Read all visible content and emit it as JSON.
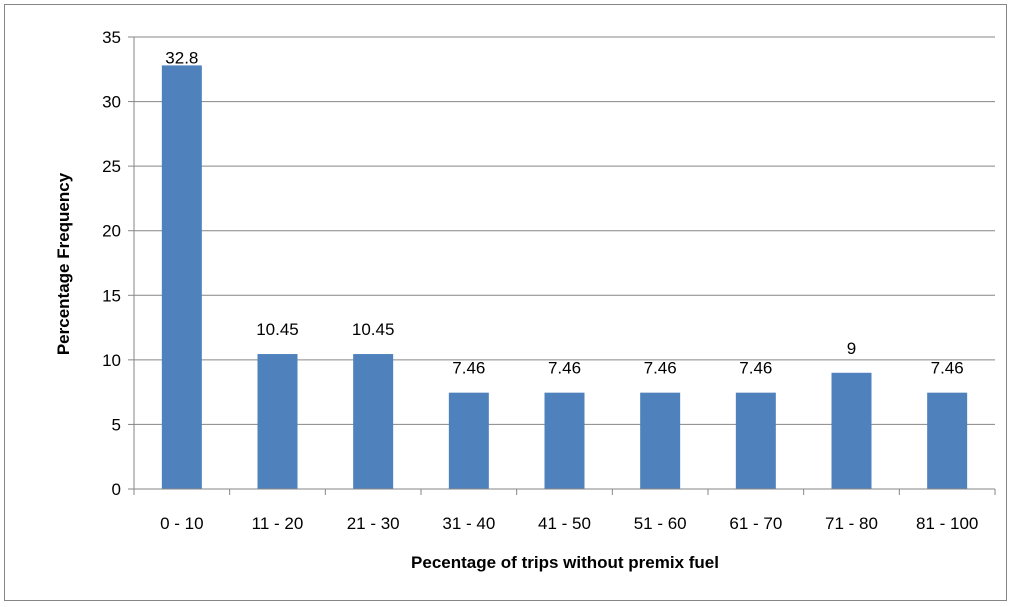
{
  "chart_data": {
    "type": "bar",
    "title": "",
    "xlabel": "Pecentage of trips without premix fuel",
    "ylabel": "Percentage Frequency",
    "categories": [
      "0 - 10",
      "11 - 20",
      "21 - 30",
      "31 - 40",
      "41 - 50",
      "51 - 60",
      "61 - 70",
      "71 - 80",
      "81 - 100"
    ],
    "values": [
      32.8,
      10.45,
      10.45,
      7.46,
      7.46,
      7.46,
      7.46,
      9,
      7.46
    ],
    "value_labels": [
      "32.8",
      "10.45",
      "10.45",
      "7.46",
      "7.46",
      "7.46",
      "7.46",
      "9",
      "7.46"
    ],
    "ylim": [
      0,
      35
    ],
    "yticks": [
      0,
      5,
      10,
      15,
      20,
      25,
      30,
      35
    ],
    "grid": true,
    "legend": "none",
    "bar_color": "#4F81BD",
    "grid_color": "#868686"
  }
}
